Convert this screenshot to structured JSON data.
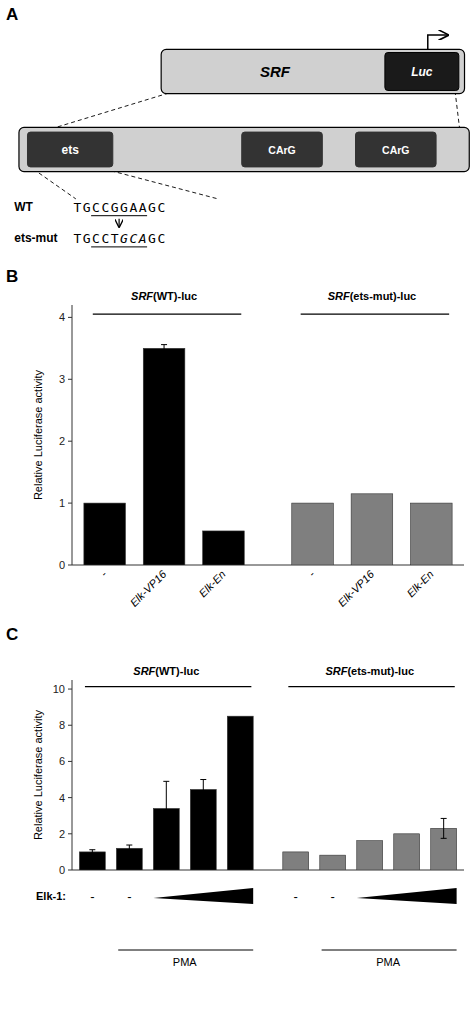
{
  "chart_data": [
    {
      "type": "diagram",
      "title": "A",
      "annotations": [
        "SRF",
        "Luc",
        "ets",
        "CArG",
        "CArG",
        "WT",
        "TGCCGGAAGC",
        "ets-mut",
        "TGCCTGCAGC"
      ]
    },
    {
      "type": "bar",
      "title": "B",
      "categories": [
        "-",
        "Elk-VP16",
        "Elk-En"
      ],
      "series": [
        {
          "name": "SRF(WT)-luc",
          "color": "#000000",
          "values": [
            1.0,
            3.5,
            0.55
          ],
          "errors": [
            0.0,
            0.06,
            0.0
          ]
        },
        {
          "name": "SRF(ets-mut)-luc",
          "color": "#7f7f7f",
          "values": [
            1.0,
            1.15,
            1.0
          ],
          "errors": [
            0.0,
            0.0,
            0.0
          ]
        }
      ],
      "y_label": "Relative Luciferase activity",
      "ylim": [
        0,
        4.2
      ],
      "yticks": [
        0,
        1,
        2,
        3,
        4
      ]
    },
    {
      "type": "bar",
      "title": "C",
      "categories": [
        "-",
        "-",
        null,
        null,
        null
      ],
      "series": [
        {
          "name": "SRF(WT)-luc",
          "color": "#000000",
          "values": [
            1.0,
            1.2,
            3.4,
            4.45,
            8.5
          ],
          "errors": [
            0.12,
            0.18,
            1.5,
            0.55,
            0.0
          ]
        },
        {
          "name": "SRF(ets-mut)-luc",
          "color": "#7f7f7f",
          "values": [
            1.0,
            0.82,
            1.62,
            2.0,
            2.3
          ],
          "errors": [
            0.0,
            0.0,
            0.0,
            0.0,
            0.55
          ]
        }
      ],
      "y_label": "Relative Luciferase activity",
      "ylim": [
        0,
        10.5
      ],
      "yticks": [
        0,
        2,
        4,
        6,
        8,
        10
      ],
      "annotations": [
        "Elk-1:",
        "PMA"
      ]
    }
  ]
}
